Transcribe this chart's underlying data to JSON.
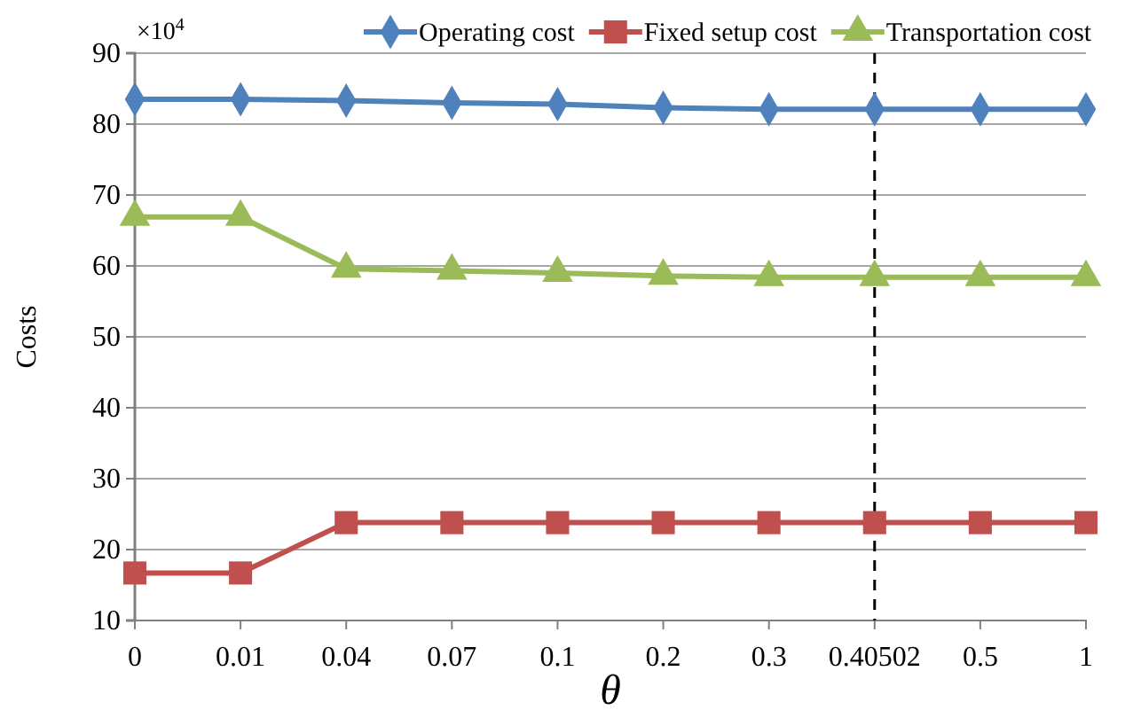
{
  "chart_data": {
    "type": "line",
    "xlabel": "θ",
    "ylabel": "Costs",
    "categories": [
      "0",
      "0.01",
      "0.04",
      "0.07",
      "0.1",
      "0.2",
      "0.3",
      "0.40502",
      "0.5",
      "1"
    ],
    "series": [
      {
        "name": "Operating cost",
        "color": "#4f81bd",
        "marker": "diamond",
        "values": [
          83.5,
          83.5,
          83.3,
          83.0,
          82.8,
          82.3,
          82.1,
          82.1,
          82.1,
          82.1
        ]
      },
      {
        "name": "Fixed setup cost",
        "color": "#c0504d",
        "marker": "square",
        "values": [
          16.7,
          16.7,
          23.8,
          23.8,
          23.8,
          23.8,
          23.8,
          23.8,
          23.8,
          23.8
        ]
      },
      {
        "name": "Transportation cost",
        "color": "#9bbb59",
        "marker": "triangle",
        "values": [
          66.9,
          66.9,
          59.6,
          59.3,
          59.0,
          58.6,
          58.4,
          58.4,
          58.4,
          58.4
        ]
      }
    ],
    "ylim": [
      10,
      90
    ],
    "yticks": [
      10,
      20,
      30,
      40,
      50,
      60,
      70,
      80,
      90
    ],
    "grid": "y",
    "legend": "top",
    "line_style": "solid",
    "ref_lines": [
      {
        "axis": "x",
        "value": "0.40502",
        "color": "#000000",
        "line_style": "dashed"
      }
    ],
    "annotations": [
      "×10$^{4}$"
    ]
  }
}
